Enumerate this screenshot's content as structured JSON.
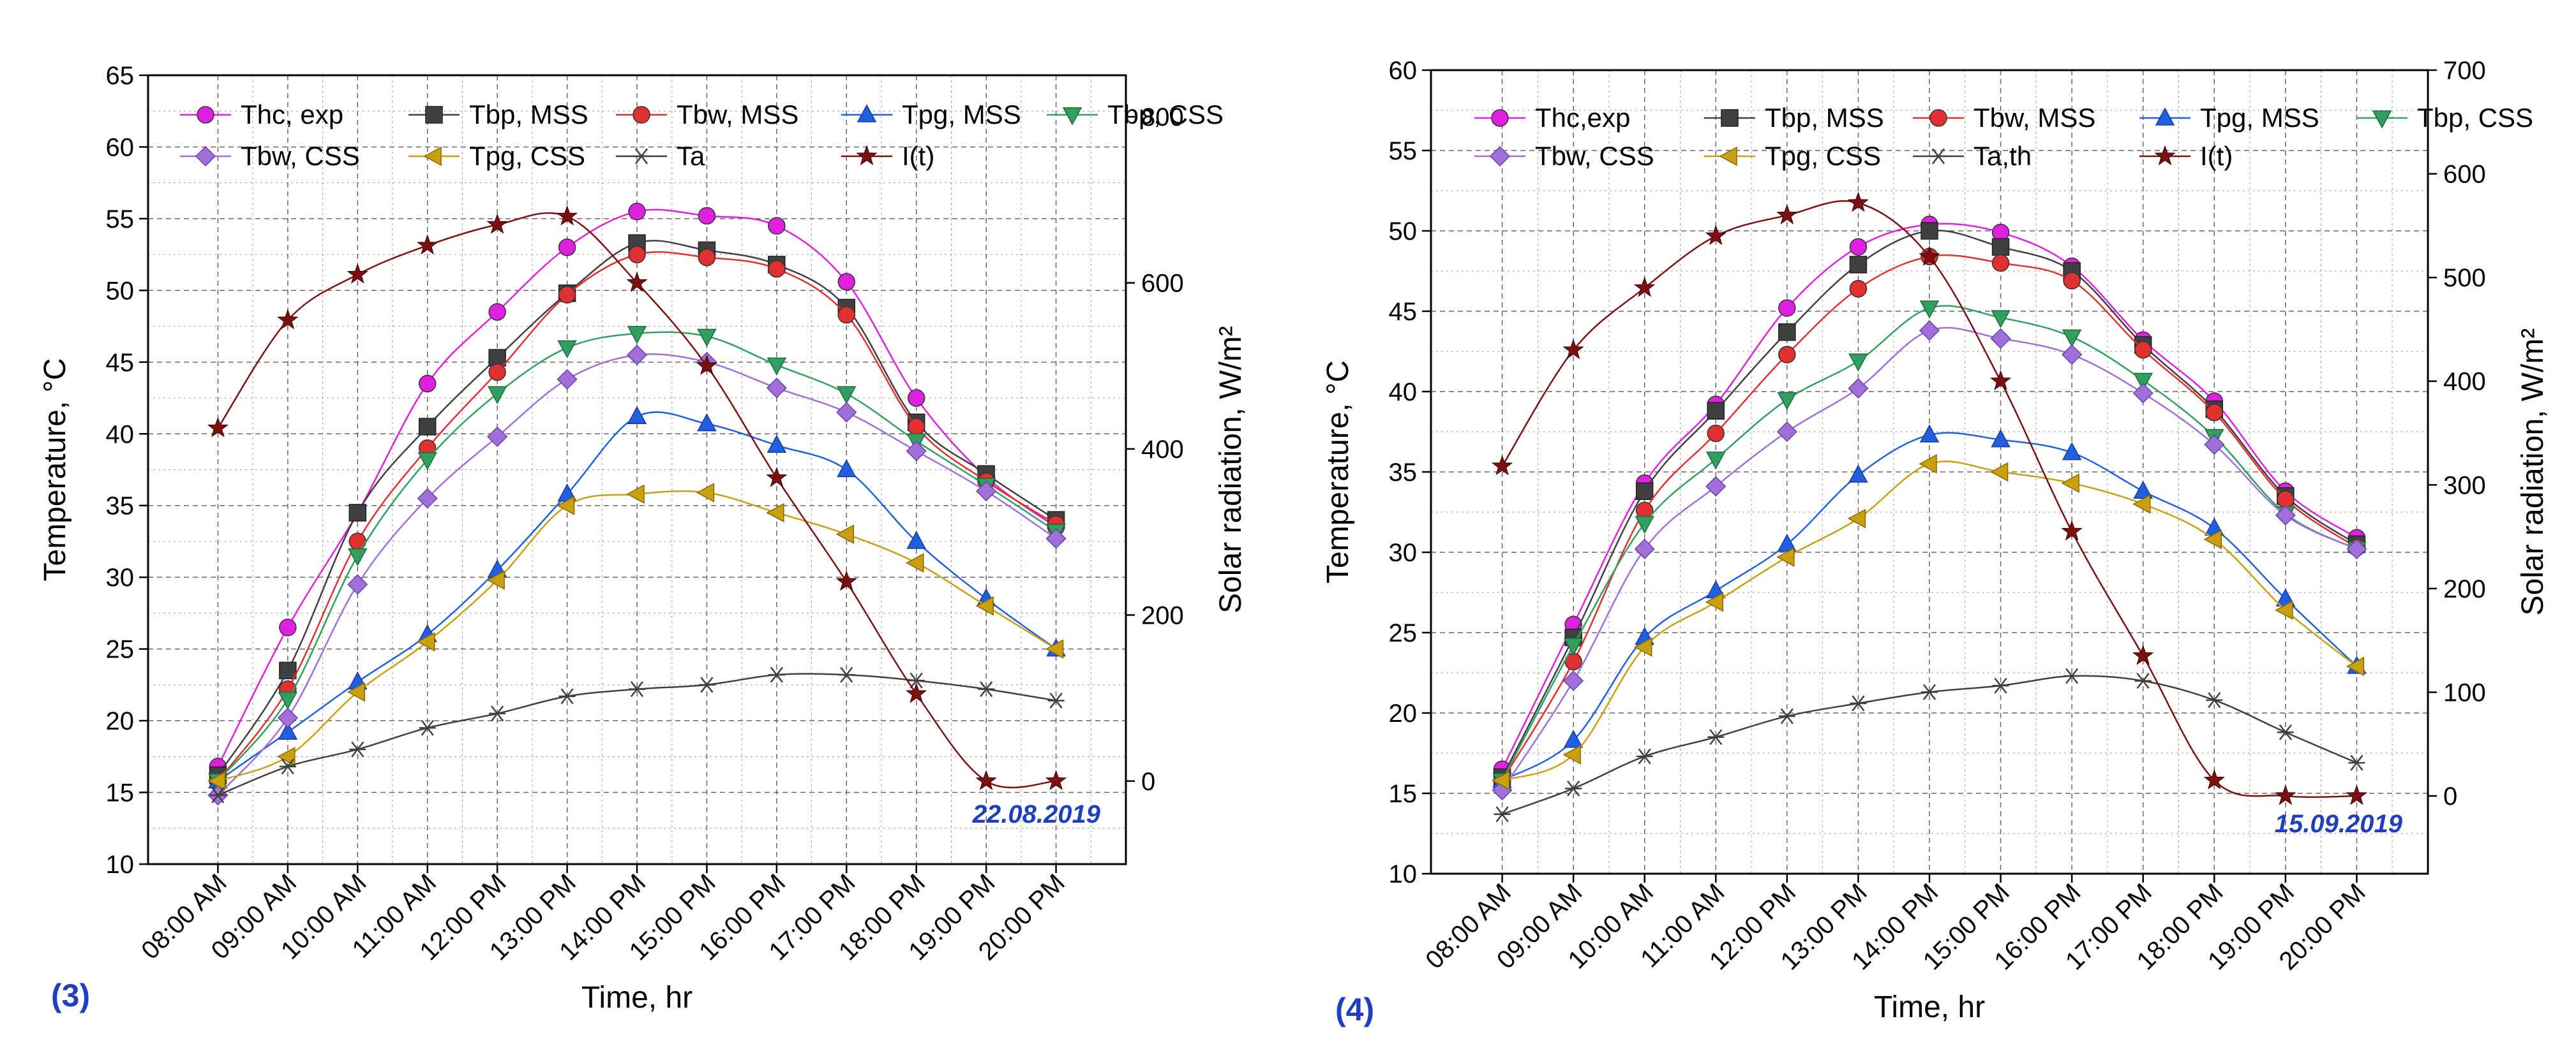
{
  "chart_data": [
    {
      "type": "line",
      "panel_label": "(3)",
      "date": "22.08.2019",
      "xlabel": "Time, hr",
      "ylabel": "Temperature, °C",
      "y2label": "Solar radiation, W/m²",
      "ylim": [
        10,
        65
      ],
      "y2lim": [
        -100,
        850
      ],
      "yticks": [
        10,
        15,
        20,
        25,
        30,
        35,
        40,
        45,
        50,
        55,
        60,
        65
      ],
      "y2ticks": [
        0,
        200,
        400,
        600,
        800
      ],
      "grid": true,
      "legend_position": "top",
      "categories": [
        "08:00 AM",
        "09:00 AM",
        "10:00 AM",
        "11:00 AM",
        "12:00 PM",
        "13:00 PM",
        "14:00 PM",
        "15:00 PM",
        "16:00 PM",
        "17:00 PM",
        "18:00 PM",
        "19:00 PM",
        "20:00 PM"
      ],
      "series": [
        {
          "name": "Thc, exp",
          "color": "#e020e0",
          "marker": "circle",
          "axis": "left",
          "values": [
            16.8,
            26.5,
            34.5,
            43.5,
            48.5,
            53,
            55.5,
            55.2,
            54.5,
            50.6,
            42.5,
            37,
            33.5
          ]
        },
        {
          "name": "Tbp, MSS",
          "color": "#404040",
          "marker": "square",
          "axis": "left",
          "values": [
            16.2,
            23.5,
            34.5,
            40.5,
            45.3,
            49.8,
            53.3,
            52.8,
            51.8,
            48.8,
            40.8,
            37.2,
            34
          ]
        },
        {
          "name": "Tbw, MSS",
          "color": "#e03030",
          "marker": "circle",
          "axis": "left",
          "values": [
            15.8,
            22.2,
            32.5,
            39,
            44.3,
            49.7,
            52.5,
            52.3,
            51.5,
            48.3,
            40.5,
            36.7,
            33.7
          ]
        },
        {
          "name": "Tpg, MSS",
          "color": "#2060e0",
          "marker": "triangle-up",
          "axis": "left",
          "values": [
            15.8,
            19.2,
            22.7,
            26,
            30.5,
            35.8,
            41.2,
            40.7,
            39.2,
            37.5,
            32.5,
            28.5,
            25
          ]
        },
        {
          "name": "Tbp, CSS",
          "color": "#30a060",
          "marker": "triangle-down",
          "axis": "left",
          "values": [
            15.8,
            21.5,
            31.5,
            38.2,
            42.8,
            46,
            47,
            46.8,
            44.8,
            42.8,
            39.5,
            36.4,
            33.2
          ]
        },
        {
          "name": "Tbw, CSS",
          "color": "#a070d8",
          "marker": "diamond",
          "axis": "left",
          "values": [
            14.8,
            20.2,
            29.5,
            35.5,
            39.8,
            43.8,
            45.5,
            45,
            43.2,
            41.5,
            38.8,
            36,
            32.7
          ]
        },
        {
          "name": "Tpg, CSS",
          "color": "#c8a010",
          "marker": "triangle-left",
          "axis": "left",
          "values": [
            15.8,
            17.5,
            22,
            25.5,
            29.8,
            35,
            35.8,
            35.9,
            34.5,
            33,
            31,
            28,
            25
          ]
        },
        {
          "name": "Ta",
          "color": "#404040",
          "marker": "star-x",
          "axis": "left",
          "values": [
            14.8,
            16.8,
            18,
            19.5,
            20.5,
            21.7,
            22.2,
            22.5,
            23.2,
            23.2,
            22.8,
            22.2,
            21.4
          ]
        },
        {
          "name": "I(t)",
          "color": "#7a1010",
          "marker": "star",
          "axis": "right",
          "values": [
            425,
            555,
            610,
            645,
            670,
            680,
            600,
            500,
            365,
            240,
            105,
            0,
            0
          ]
        }
      ]
    },
    {
      "type": "line",
      "panel_label": "(4)",
      "date": "15.09.2019",
      "xlabel": "Time, hr",
      "ylabel": "Temperature, °C",
      "y2label": "Solar radiation, W/m²",
      "ylim": [
        10,
        60
      ],
      "y2lim": [
        -75,
        700
      ],
      "yticks": [
        10,
        15,
        20,
        25,
        30,
        35,
        40,
        45,
        50,
        55,
        60
      ],
      "y2ticks": [
        0,
        100,
        200,
        300,
        400,
        500,
        600,
        700
      ],
      "grid": true,
      "legend_position": "top",
      "categories": [
        "08:00 AM",
        "09:00 AM",
        "10:00 AM",
        "11:00 AM",
        "12:00 PM",
        "13:00 PM",
        "14:00 PM",
        "15:00 PM",
        "16:00 PM",
        "17:00 PM",
        "18:00 PM",
        "19:00 PM",
        "20:00 PM"
      ],
      "series": [
        {
          "name": "Thc,exp",
          "color": "#e020e0",
          "marker": "circle",
          "axis": "left",
          "values": [
            16.5,
            25.5,
            34.3,
            39.2,
            45.2,
            49,
            50.4,
            49.9,
            47.8,
            43.2,
            39.4,
            33.8,
            30.9
          ]
        },
        {
          "name": "Tbp, MSS",
          "color": "#404040",
          "marker": "square",
          "axis": "left",
          "values": [
            16,
            24.7,
            33.8,
            38.8,
            43.7,
            47.9,
            50,
            49,
            47.5,
            42.9,
            38.9,
            33.5,
            30.5
          ]
        },
        {
          "name": "Tbw, MSS",
          "color": "#e03030",
          "marker": "circle",
          "axis": "left",
          "values": [
            15.8,
            23.2,
            32.6,
            37.4,
            42.3,
            46.4,
            48.4,
            48,
            46.9,
            42.6,
            38.7,
            33.3,
            30.3
          ]
        },
        {
          "name": "Tpg, MSS",
          "color": "#2060e0",
          "marker": "triangle-up",
          "axis": "left",
          "values": [
            15.8,
            18.3,
            24.7,
            27.6,
            30.5,
            34.8,
            37.3,
            37,
            36.2,
            33.8,
            31.5,
            27.1,
            22.9
          ]
        },
        {
          "name": "Tbp, CSS",
          "color": "#30a060",
          "marker": "triangle-down",
          "axis": "left",
          "values": [
            15.8,
            24.2,
            31.8,
            35.8,
            39.5,
            41.9,
            45.2,
            44.6,
            43.4,
            40.7,
            37.2,
            32.4,
            30.2
          ]
        },
        {
          "name": "Tbw, CSS",
          "color": "#a070d8",
          "marker": "diamond",
          "axis": "left",
          "values": [
            15.2,
            22,
            30.2,
            34.1,
            37.5,
            40.2,
            43.8,
            43.3,
            42.3,
            39.9,
            36.7,
            32.3,
            30.2
          ]
        },
        {
          "name": "Tpg, CSS",
          "color": "#c8a010",
          "marker": "triangle-left",
          "axis": "left",
          "values": [
            15.8,
            17.4,
            24.1,
            26.9,
            29.7,
            32.1,
            35.5,
            35,
            34.3,
            33,
            30.8,
            26.4,
            22.9
          ]
        },
        {
          "name": "Ta,th",
          "color": "#404040",
          "marker": "star-x",
          "axis": "left",
          "values": [
            13.7,
            15.3,
            17.3,
            18.5,
            19.8,
            20.6,
            21.3,
            21.7,
            22.3,
            22,
            20.8,
            18.8,
            16.9
          ]
        },
        {
          "name": "I(t)",
          "color": "#7a1010",
          "marker": "star",
          "axis": "right",
          "values": [
            318,
            430,
            490,
            540,
            560,
            572,
            520,
            400,
            255,
            135,
            15,
            0,
            0
          ]
        }
      ]
    }
  ]
}
